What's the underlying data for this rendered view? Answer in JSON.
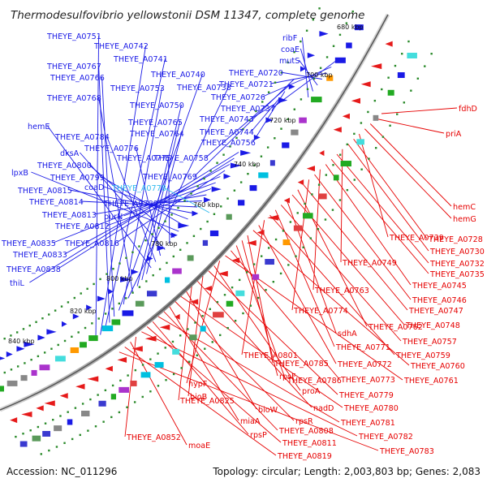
{
  "title": "Thermodesulfovibrio yellowstonii DSM 11347, complete genome",
  "footer": {
    "accession": "Accession: NC_011296",
    "summary": "Topology: circular; Length: 2,003,803 bp; Genes: 2,083"
  },
  "colors": {
    "forward_label": "#1a1ae6",
    "reverse_label": "#e60000",
    "highlight_label": "#33bbee",
    "backbone": "#888888",
    "tick": "#2a8a2a"
  },
  "kbp_ticks": [
    {
      "label": "680 kbp"
    },
    {
      "label": "700 kbp"
    },
    {
      "label": "720 kbp"
    },
    {
      "label": "740 kbp"
    },
    {
      "label": "760 kbp"
    },
    {
      "label": "780 kbp"
    },
    {
      "label": "800 kbp"
    },
    {
      "label": "820 kbp"
    },
    {
      "label": "840 kbp"
    }
  ],
  "forward_labels": [
    {
      "text": "THEYE_A0751"
    },
    {
      "text": "THEYE_A0742"
    },
    {
      "text": "THEYE_A0741"
    },
    {
      "text": "THEYE_A0767"
    },
    {
      "text": "THEYE_A0766"
    },
    {
      "text": "THEYE_A0740"
    },
    {
      "text": "THEYE_A0753"
    },
    {
      "text": "THEYE_A0738"
    },
    {
      "text": "THEYE_A0768"
    },
    {
      "text": "THEYE_A0750"
    },
    {
      "text": "THEYE_A0765"
    },
    {
      "text": "THEYE_A0764"
    },
    {
      "text": "hemE"
    },
    {
      "text": "THEYE_A0784"
    },
    {
      "text": "THEYE_A0776"
    },
    {
      "text": "dksA"
    },
    {
      "text": "THEYE_A0775"
    },
    {
      "text": "THEYE_A0800"
    },
    {
      "text": "lpxB"
    },
    {
      "text": "THEYE_A0799"
    },
    {
      "text": "coaD"
    },
    {
      "text": "THEYE_A0815"
    },
    {
      "text": "THEYE_A0814"
    },
    {
      "text": "THEYE_A0789"
    },
    {
      "text": "THEYE_A0813"
    },
    {
      "text": "THEYE_A0812"
    },
    {
      "text": "purN"
    },
    {
      "text": "THEYE_A0835"
    },
    {
      "text": "THEYE_A0816"
    },
    {
      "text": "THEYE_A0833"
    },
    {
      "text": "THEYE_A0838"
    },
    {
      "text": "thiL"
    },
    {
      "text": "ribF"
    },
    {
      "text": "coaE"
    },
    {
      "text": "mutS"
    },
    {
      "text": "THEYE_A0720"
    },
    {
      "text": "THEYE_A0721"
    },
    {
      "text": "THEYE_A0726"
    },
    {
      "text": "THEYE_A0737"
    },
    {
      "text": "THEYE_A0743"
    },
    {
      "text": "THEYE_A0744"
    },
    {
      "text": "THEYE_A0756"
    },
    {
      "text": "THEYE_A0758"
    },
    {
      "text": "THEYE_A0769"
    }
  ],
  "highlight_labels": [
    {
      "text": "THEYE_A0778"
    }
  ],
  "reverse_labels": [
    {
      "text": "fdhD"
    },
    {
      "text": "priA"
    },
    {
      "text": "hemC"
    },
    {
      "text": "hemG"
    },
    {
      "text": "THEYE_A0739"
    },
    {
      "text": "THEYE_A0728"
    },
    {
      "text": "THEYE_A0730"
    },
    {
      "text": "THEYE_A0749"
    },
    {
      "text": "THEYE_A0732"
    },
    {
      "text": "THEYE_A0735"
    },
    {
      "text": "THEYE_A0745"
    },
    {
      "text": "THEYE_A0763"
    },
    {
      "text": "THEYE_A0746"
    },
    {
      "text": "THEYE_A0774"
    },
    {
      "text": "THEYE_A0747"
    },
    {
      "text": "THEYE_A0762"
    },
    {
      "text": "THEYE_A0748"
    },
    {
      "text": "sdhA"
    },
    {
      "text": "THEYE_A0757"
    },
    {
      "text": "THEYE_A0771"
    },
    {
      "text": "THEYE_A0759"
    },
    {
      "text": "THEYE_A0801"
    },
    {
      "text": "THEYE_A0772"
    },
    {
      "text": "THEYE_A0760"
    },
    {
      "text": "THEYE_A0785"
    },
    {
      "text": "rpsF"
    },
    {
      "text": "THEYE_A0786"
    },
    {
      "text": "THEYE_A0773"
    },
    {
      "text": "THEYE_A0761"
    },
    {
      "text": "hypF"
    },
    {
      "text": "proA"
    },
    {
      "text": "THEYE_A0779"
    },
    {
      "text": "bioB"
    },
    {
      "text": "nadD"
    },
    {
      "text": "THEYE_A0825"
    },
    {
      "text": "bioW"
    },
    {
      "text": "THEYE_A0780"
    },
    {
      "text": "rpsR"
    },
    {
      "text": "miaA"
    },
    {
      "text": "THEYE_A0808"
    },
    {
      "text": "THEYE_A0781"
    },
    {
      "text": "rpsP"
    },
    {
      "text": "THEYE_A0811"
    },
    {
      "text": "THEYE_A0782"
    },
    {
      "text": "THEYE_A0852"
    },
    {
      "text": "moaE"
    },
    {
      "text": "THEYE_A0819"
    },
    {
      "text": "THEYE_A0783"
    }
  ]
}
